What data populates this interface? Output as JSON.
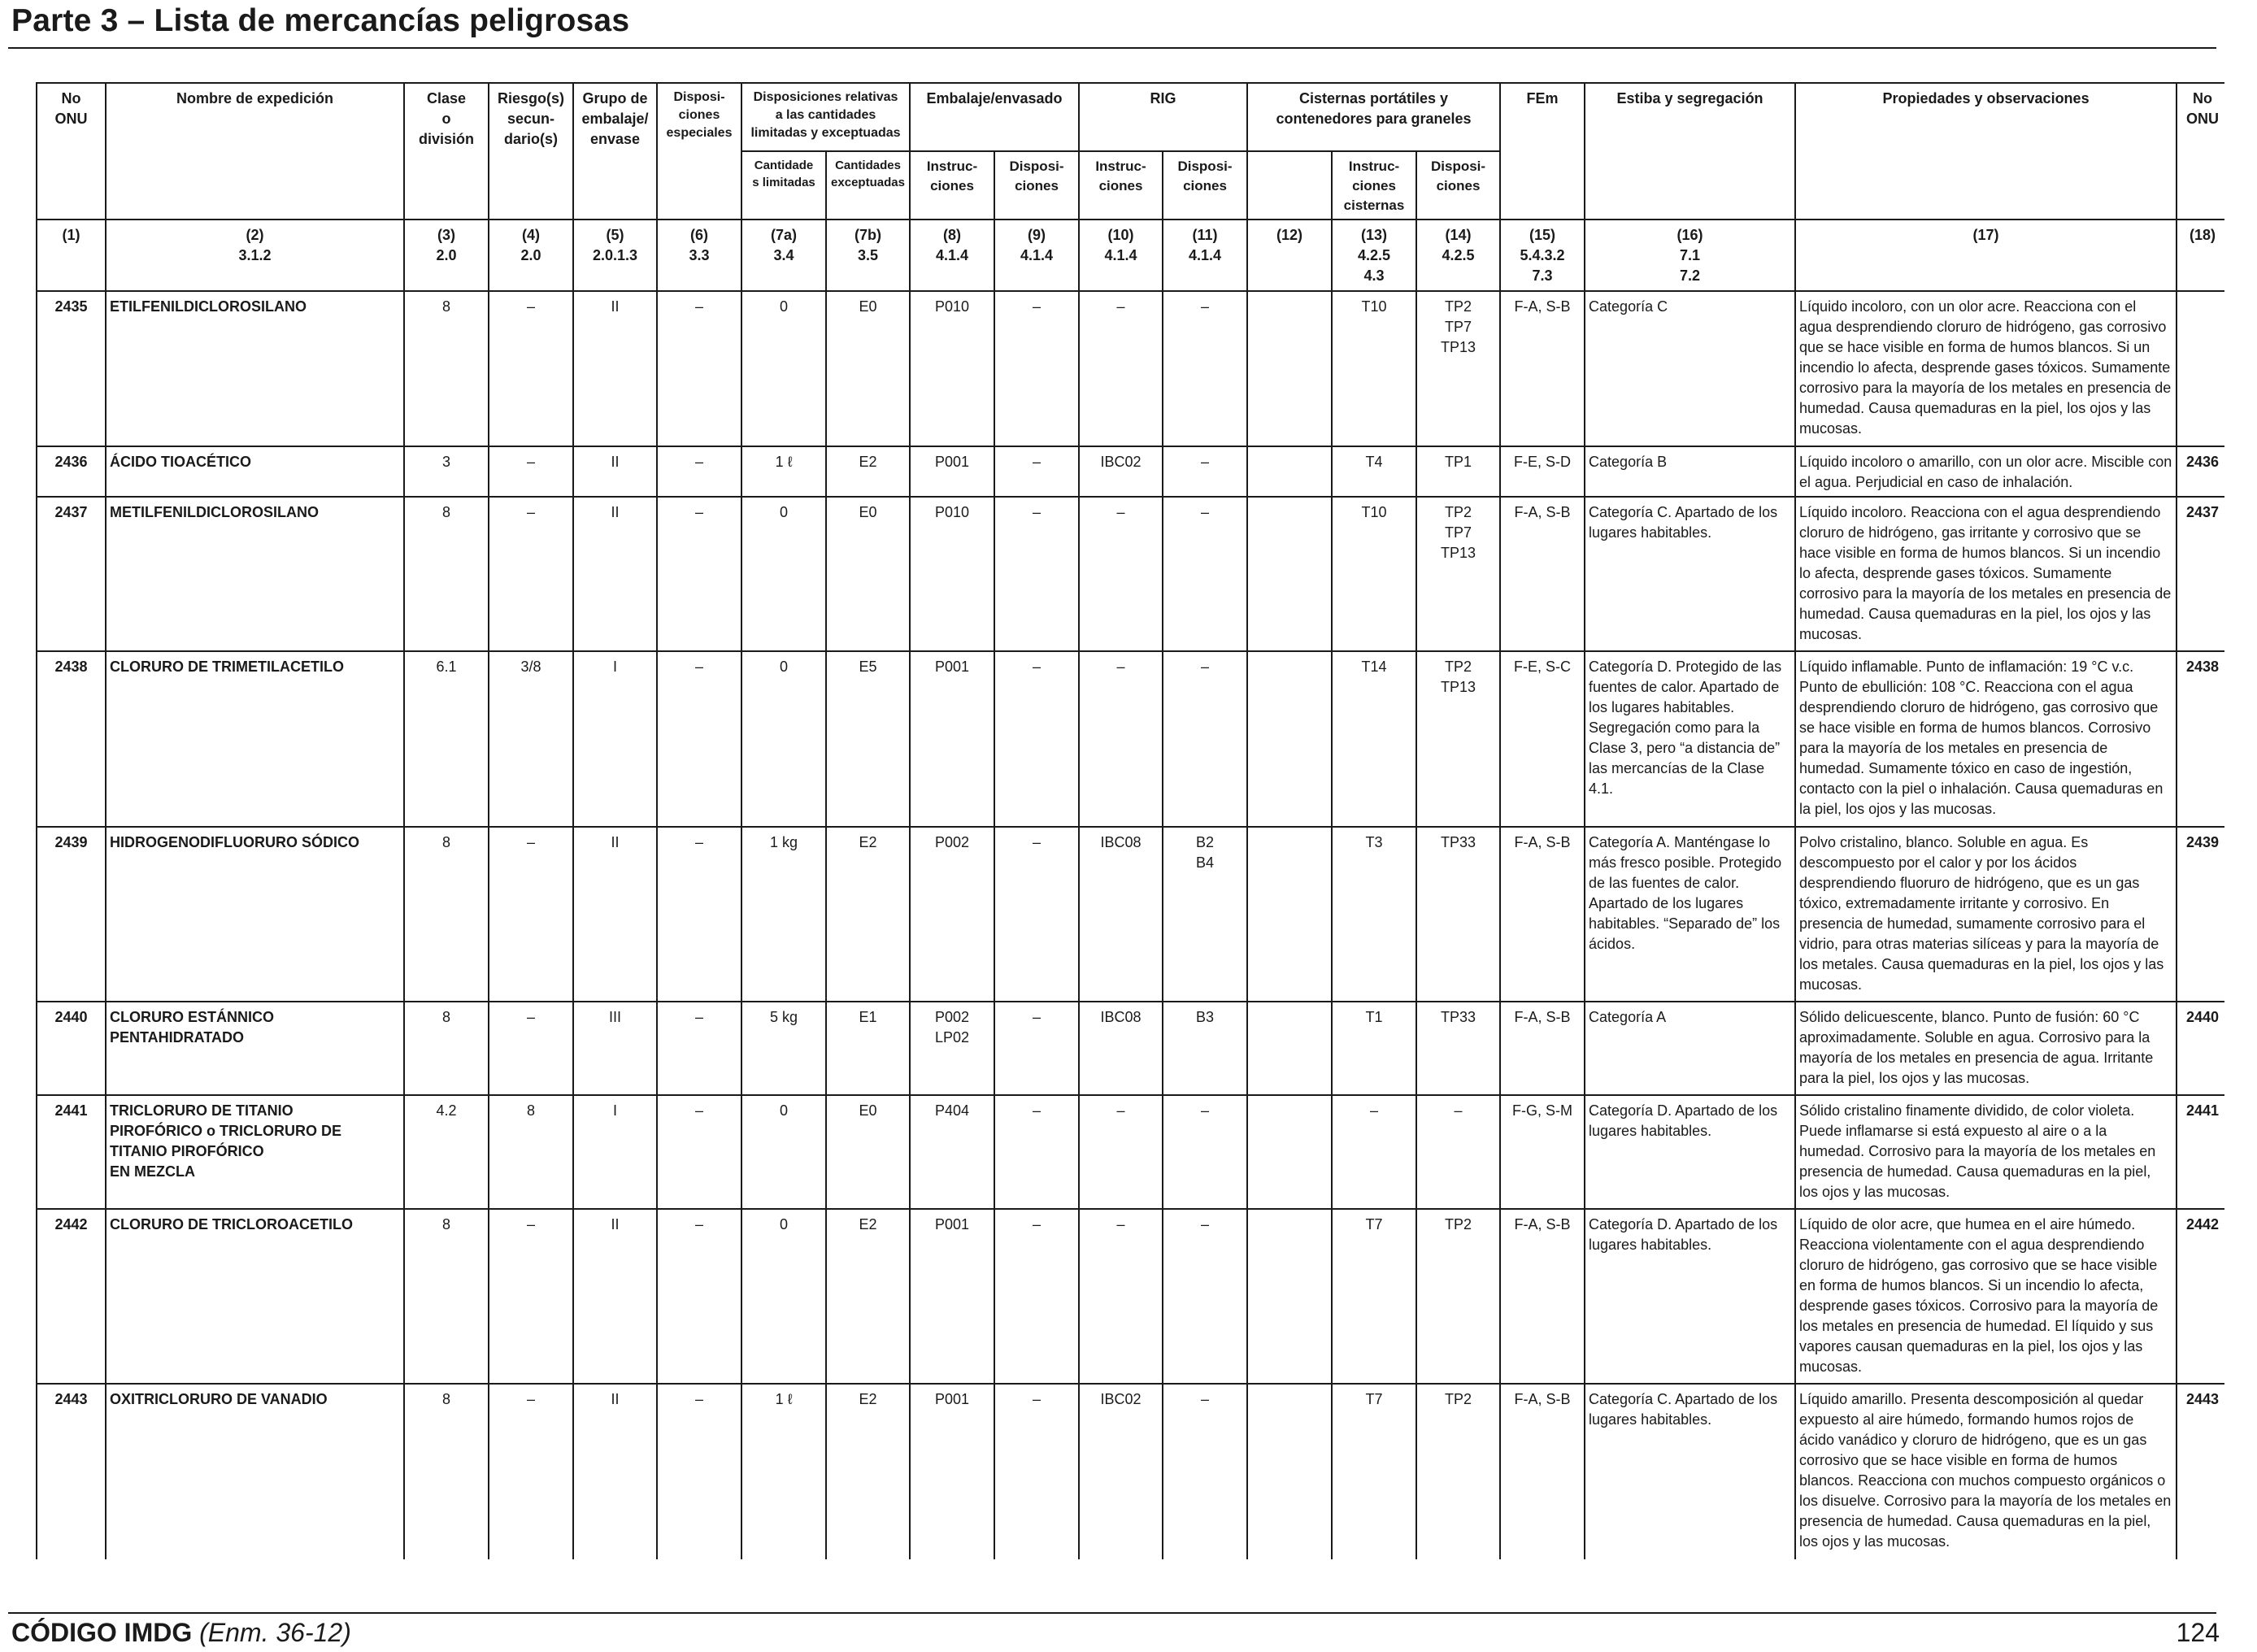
{
  "title": "Parte 3 – Lista de mercancías peligrosas",
  "headers": {
    "no_onu": "No\nONU",
    "nombre": "Nombre de expedición",
    "clase": "Clase\no\ndivisión",
    "riesgo": "Riesgo(s)\nsecun-\ndario(s)",
    "grupo": "Grupo de\nembalaje/\nenvase",
    "dispos_especiales": "Disposi-\nciones\nespeciales",
    "disp_relativas": "Disposiciones relativas\na las cantidades\nlimitadas y exceptuadas",
    "cant_limitadas": "Cantidade\ns limitadas",
    "cant_exceptuadas": "Cantidades\nexceptuadas",
    "embalaje": "Embalaje/envasado",
    "emb_instrucciones": "Instruc-\nciones",
    "emb_disposiciones": "Disposi-\nciones",
    "rig": "RIG",
    "rig_instrucciones": "Instruc-\nciones",
    "rig_disposiciones": "Disposi-\nciones",
    "cisternas": "Cisternas portátiles y\ncontenedores para graneles",
    "cist_instrucciones": "Instruc-\nciones\ncisternas",
    "cist_disposiciones": "Disposi-\nciones",
    "fem": "FEm",
    "estiba": "Estiba y segregación",
    "propiedades": "Propiedades y observaciones",
    "no_onu_end": "No\nONU"
  },
  "colnums": [
    "(1)",
    "(2)\n3.1.2",
    "(3)\n2.0",
    "(4)\n2.0",
    "(5)\n2.0.1.3",
    "(6)\n3.3",
    "(7a)\n3.4",
    "(7b)\n3.5",
    "(8)\n4.1.4",
    "(9)\n4.1.4",
    "(10)\n4.1.4",
    "(11)\n4.1.4",
    "(12)",
    "(13)\n4.2.5\n4.3",
    "(14)\n4.2.5",
    "(15)\n5.4.3.2\n7.3",
    "(16)\n7.1\n7.2",
    "(17)",
    "(18)"
  ],
  "rows": [
    {
      "onu": "2435",
      "nombre": "ETILFENILDICLOROSILANO",
      "clase": "8",
      "riesgo": "–",
      "grupo": "II",
      "disp_esp": "–",
      "cant_lim": "0",
      "cant_exc": "E0",
      "emb_instr": "P010",
      "emb_disp": "–",
      "rig_instr": "–",
      "rig_disp": "–",
      "col12": "",
      "cist_instr": "T10",
      "cist_disp": "TP2\nTP7\nTP13",
      "fem": "F-A, S-B",
      "estiba": "Categoría C",
      "propiedades": "Líquido incoloro, con un olor acre. Reacciona con el agua desprendiendo cloruro de hidrógeno, gas corrosivo que se hace visible en forma de humos blancos. Si un incendio lo afecta, desprende gases tóxicos. Sumamente corrosivo para la mayoría de los metales en presencia de humedad. Causa quemaduras en la piel, los ojos y las mucosas.",
      "onu_end": ""
    },
    {
      "onu": "2436",
      "nombre": "ÁCIDO TIOACÉTICO",
      "clase": "3",
      "riesgo": "–",
      "grupo": "II",
      "disp_esp": "–",
      "cant_lim": "1 ℓ",
      "cant_exc": "E2",
      "emb_instr": "P001",
      "emb_disp": "–",
      "rig_instr": "IBC02",
      "rig_disp": "–",
      "col12": "",
      "cist_instr": "T4",
      "cist_disp": "TP1",
      "fem": "F-E, S-D",
      "estiba": "Categoría B",
      "propiedades": "Líquido incoloro o amarillo, con un olor acre. Miscible con el agua. Perjudicial en caso de inhalación.",
      "onu_end": "2436"
    },
    {
      "onu": "2437",
      "nombre": "METILFENILDICLOROSILANO",
      "clase": "8",
      "riesgo": "–",
      "grupo": "II",
      "disp_esp": "–",
      "cant_lim": "0",
      "cant_exc": "E0",
      "emb_instr": "P010",
      "emb_disp": "–",
      "rig_instr": "–",
      "rig_disp": "–",
      "col12": "",
      "cist_instr": "T10",
      "cist_disp": "TP2\nTP7\nTP13",
      "fem": "F-A, S-B",
      "estiba": "Categoría C. Apartado de los lugares habitables.",
      "propiedades": "Líquido incoloro. Reacciona con el agua desprendiendo cloruro de hidrógeno, gas irritante y corrosivo que se hace visible en forma de humos blancos. Si un incendio lo afecta, desprende gases tóxicos. Sumamente corrosivo para la mayoría de los metales en presencia de humedad. Causa quemaduras en la piel, los ojos y las mucosas.",
      "onu_end": "2437"
    },
    {
      "onu": "2438",
      "nombre": "CLORURO DE TRIMETILACETILO",
      "clase": "6.1",
      "riesgo": "3/8",
      "grupo": "I",
      "disp_esp": "–",
      "cant_lim": "0",
      "cant_exc": "E5",
      "emb_instr": "P001",
      "emb_disp": "–",
      "rig_instr": "–",
      "rig_disp": "–",
      "col12": "",
      "cist_instr": "T14",
      "cist_disp": "TP2\nTP13",
      "fem": "F-E, S-C",
      "estiba": "Categoría D. Protegido de las fuentes de calor. Apartado de los lugares habitables. Segregación como para la Clase 3, pero “a distancia de” las mercancías de la Clase 4.1.",
      "propiedades": "Líquido inflamable. Punto de inflamación: 19 °C v.c. Punto de ebullición: 108 °C. Reacciona con el agua desprendiendo cloruro de hidrógeno, gas corrosivo que se hace visible en forma de humos blancos. Corrosivo para la mayoría de los metales en presencia de humedad. Sumamente tóxico en caso de ingestión, contacto con la piel o inhalación. Causa quemaduras en la piel, los ojos y las mucosas.",
      "onu_end": "2438"
    },
    {
      "onu": "2439",
      "nombre": "HIDROGENODIFLUORURO SÓDICO",
      "clase": "8",
      "riesgo": "–",
      "grupo": "II",
      "disp_esp": "–",
      "cant_lim": "1 kg",
      "cant_exc": "E2",
      "emb_instr": "P002",
      "emb_disp": "–",
      "rig_instr": "IBC08",
      "rig_disp": "B2\nB4",
      "col12": "",
      "cist_instr": "T3",
      "cist_disp": "TP33",
      "fem": "F-A, S-B",
      "estiba": "Categoría A. Manténgase lo más fresco posible. Protegido de las fuentes de calor. Apartado de los lugares habitables. “Separado de” los ácidos.",
      "propiedades": "Polvo cristalino, blanco. Soluble en agua. Es descompuesto por el calor y por los ácidos desprendiendo fluoruro de hidrógeno, que es un gas tóxico, extremadamente irritante y corrosivo. En presencia de humedad, sumamente corrosivo para el vidrio, para otras materias silíceas y para la mayoría de los metales. Causa quemaduras en la piel, los ojos y las mucosas.",
      "onu_end": "2439"
    },
    {
      "onu": "2440",
      "nombre": "CLORURO ESTÁNNICO\nPENTAHIDRATADO",
      "clase": "8",
      "riesgo": "–",
      "grupo": "III",
      "disp_esp": "–",
      "cant_lim": "5 kg",
      "cant_exc": "E1",
      "emb_instr": "P002\nLP02",
      "emb_disp": "–",
      "rig_instr": "IBC08",
      "rig_disp": "B3",
      "col12": "",
      "cist_instr": "T1",
      "cist_disp": "TP33",
      "fem": "F-A, S-B",
      "estiba": "Categoría A",
      "propiedades": "Sólido delicuescente, blanco. Punto de fusión: 60 °C aproximadamente. Soluble en agua. Corrosivo para la mayoría de los metales en presencia de agua. Irritante para la piel, los ojos y las mucosas.",
      "onu_end": "2440"
    },
    {
      "onu": "2441",
      "nombre": "TRICLORURO DE TITANIO\nPIROFÓRICO o TRICLORURO DE\nTITANIO PIROFÓRICO\nEN MEZCLA",
      "clase": "4.2",
      "riesgo": "8",
      "grupo": "I",
      "disp_esp": "–",
      "cant_lim": "0",
      "cant_exc": "E0",
      "emb_instr": "P404",
      "emb_disp": "–",
      "rig_instr": "–",
      "rig_disp": "–",
      "col12": "",
      "cist_instr": "–",
      "cist_disp": "–",
      "fem": "F-G, S-M",
      "estiba": "Categoría D. Apartado de los lugares habitables.",
      "propiedades": "Sólido cristalino finamente dividido, de color violeta. Puede inflamarse si está expuesto al aire o a la humedad. Corrosivo para la mayoría de los metales en presencia de humedad. Causa quemaduras en la piel, los ojos y las mucosas.",
      "onu_end": "2441"
    },
    {
      "onu": "2442",
      "nombre": "CLORURO DE TRICLOROACETILO",
      "clase": "8",
      "riesgo": "–",
      "grupo": "II",
      "disp_esp": "–",
      "cant_lim": "0",
      "cant_exc": "E2",
      "emb_instr": "P001",
      "emb_disp": "–",
      "rig_instr": "–",
      "rig_disp": "–",
      "col12": "",
      "cist_instr": "T7",
      "cist_disp": "TP2",
      "fem": "F-A, S-B",
      "estiba": "Categoría D. Apartado de los lugares habitables.",
      "propiedades": "Líquido de olor acre, que humea en el aire húmedo. Reacciona violentamente con el agua desprendiendo cloruro de hidrógeno, gas corrosivo que se hace visible en forma de humos blancos. Si un incendio lo afecta, desprende gases tóxicos. Corrosivo para la mayoría de los metales en presencia de humedad. El líquido y sus vapores causan quemaduras en la piel, los ojos y las mucosas.",
      "onu_end": "2442"
    },
    {
      "onu": "2443",
      "nombre": "OXITRICLORURO DE VANADIO",
      "clase": "8",
      "riesgo": "–",
      "grupo": "II",
      "disp_esp": "–",
      "cant_lim": "1 ℓ",
      "cant_exc": "E2",
      "emb_instr": "P001",
      "emb_disp": "–",
      "rig_instr": "IBC02",
      "rig_disp": "–",
      "col12": "",
      "cist_instr": "T7",
      "cist_disp": "TP2",
      "fem": "F-A, S-B",
      "estiba": "Categoría C. Apartado de los lugares habitables.",
      "propiedades": "Líquido amarillo. Presenta descomposición al quedar expuesto al aire húmedo, formando humos rojos de ácido vanádico y cloruro de hidrógeno, que es un gas corrosivo que se hace visible en forma de humos blancos. Reacciona con muchos compuesto orgánicos o los disuelve. Corrosivo para la mayoría de los metales en presencia de humedad. Causa quemaduras en la piel, los ojos y las mucosas.",
      "onu_end": "2443"
    }
  ],
  "footer": {
    "code": "CÓDIGO IMDG",
    "amendment": "(Enm. 36-12)",
    "page": "124"
  }
}
